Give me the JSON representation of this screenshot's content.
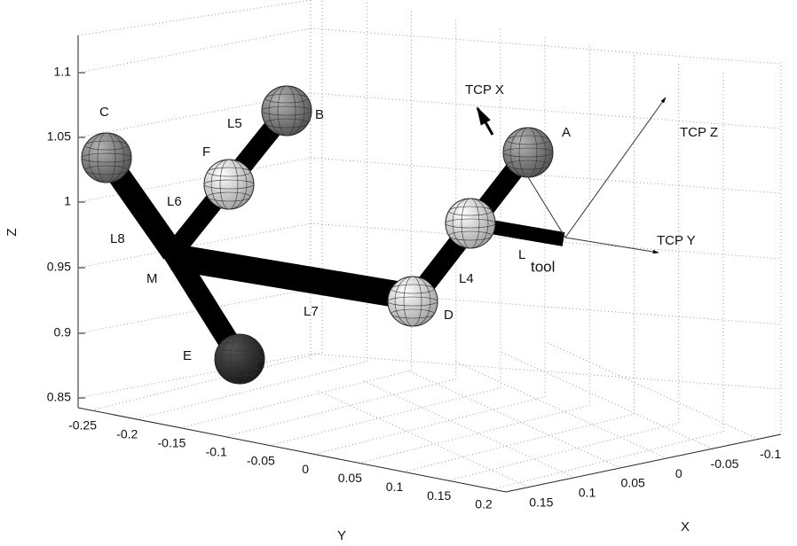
{
  "axes": {
    "z_label": "Z",
    "y_label": "Y",
    "x_label": "X",
    "z_ticks": [
      "1.1",
      "1.05",
      "1",
      "0.95",
      "0.9",
      "0.85"
    ],
    "y_ticks": [
      "-0.25",
      "-0.2",
      "-0.15",
      "-0.1",
      "-0.05",
      "0",
      "0.05",
      "0.1",
      "0.15",
      "0.2"
    ],
    "x_ticks": [
      "0.15",
      "0.1",
      "0.05",
      "0",
      "-0.05",
      "-0.1"
    ]
  },
  "nodes": [
    {
      "label": "A"
    },
    {
      "label": "B"
    },
    {
      "label": "C"
    },
    {
      "label": "D"
    },
    {
      "label": "E"
    },
    {
      "label": "F"
    },
    {
      "label": "M"
    }
  ],
  "links": [
    {
      "label": "L4"
    },
    {
      "label": "L5"
    },
    {
      "label": "L6"
    },
    {
      "label": "L7"
    },
    {
      "label": "L8"
    }
  ],
  "tool": {
    "main": "L",
    "sub": "tool"
  },
  "frame": [
    {
      "label": "TCP X"
    },
    {
      "label": "TCP Y"
    },
    {
      "label": "TCP Z"
    }
  ]
}
